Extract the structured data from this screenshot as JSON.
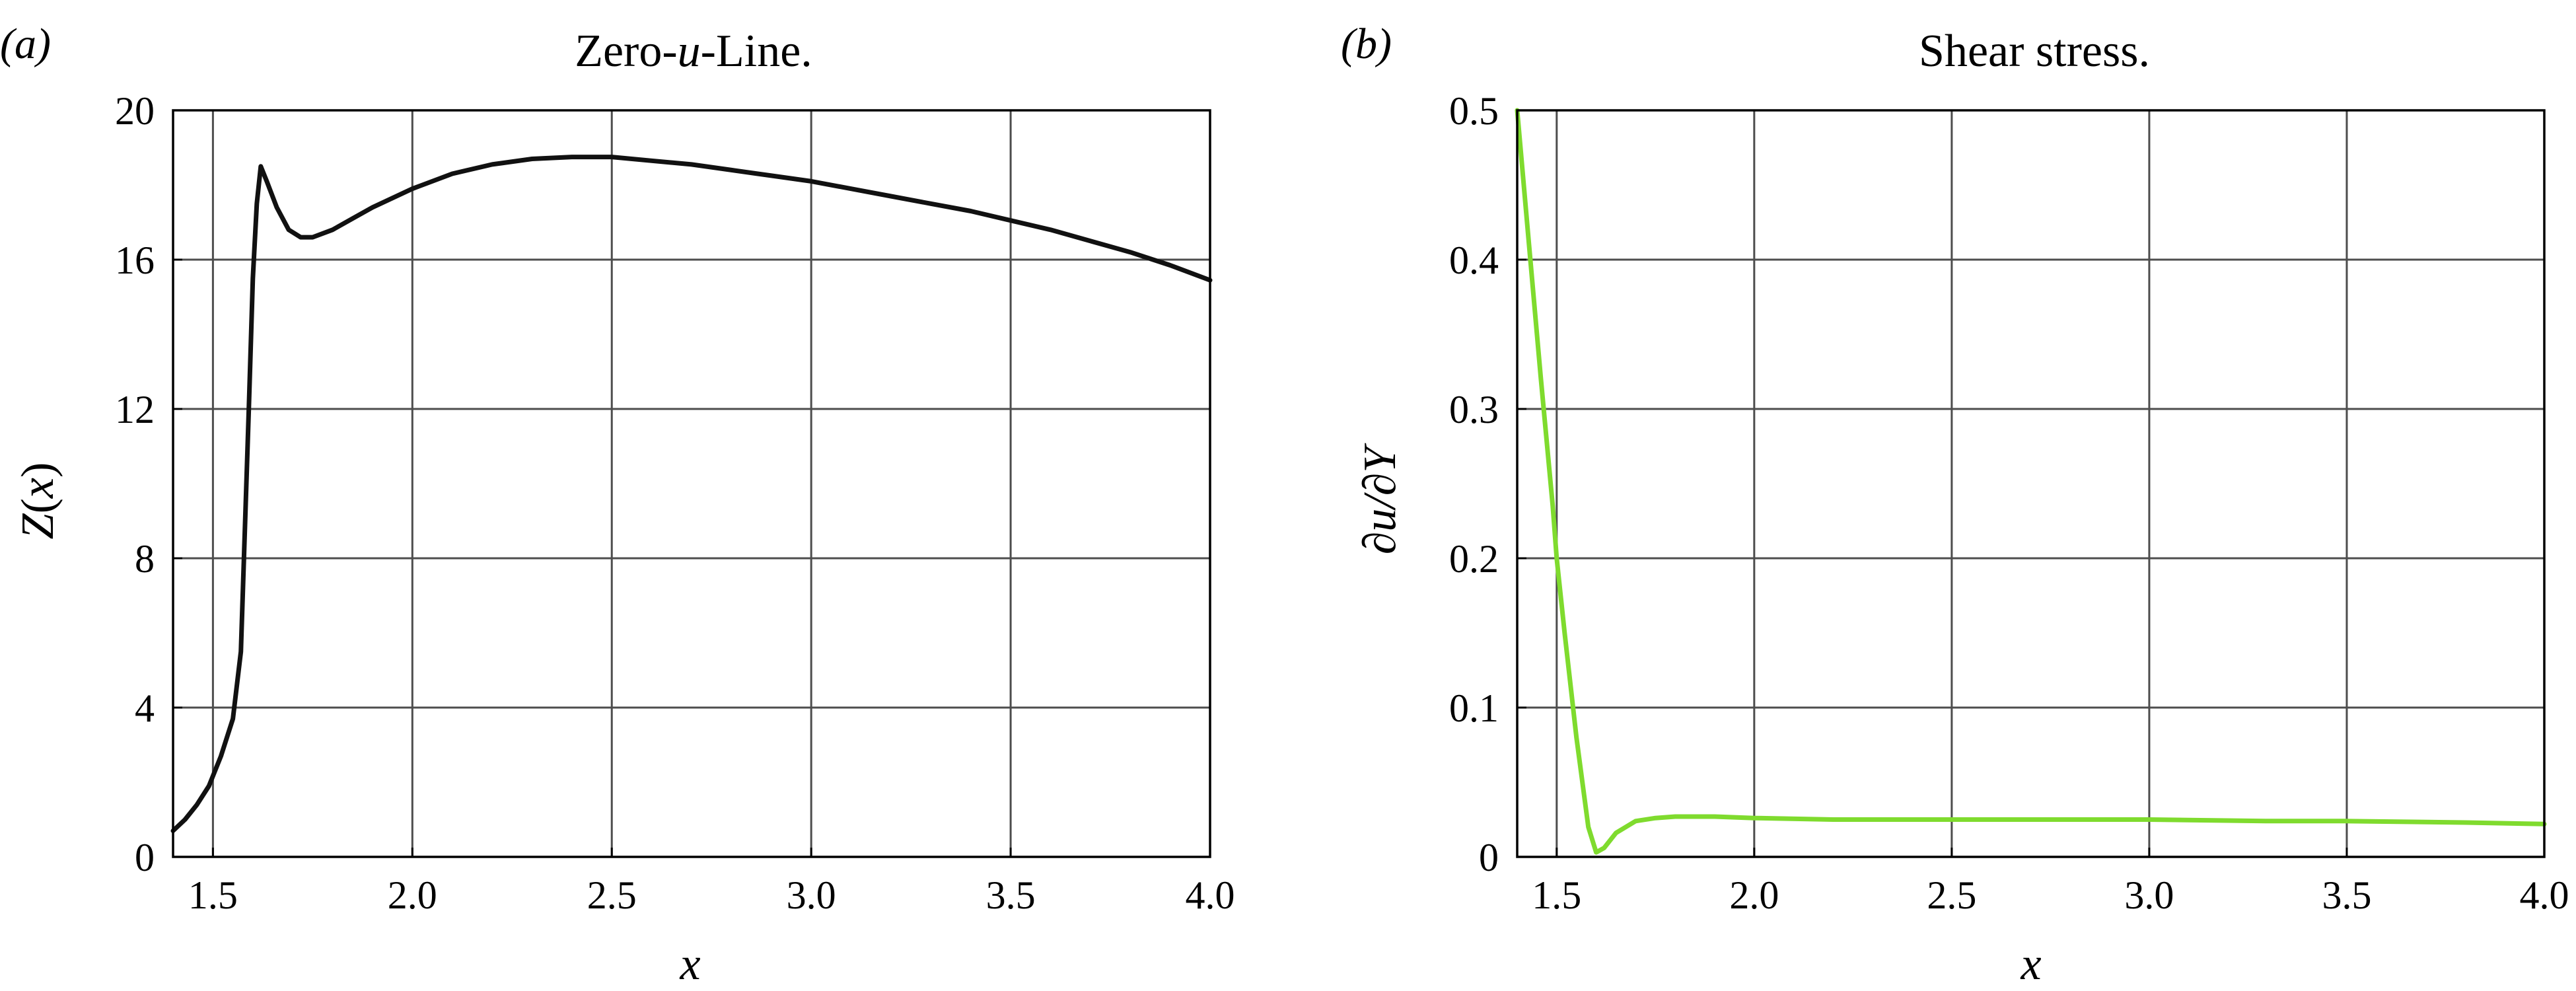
{
  "chart_data": [
    {
      "type": "line",
      "panel_label": "(a)",
      "title": "Zero-u-Line.",
      "title_parts": [
        "Zero-",
        "u",
        "-Line."
      ],
      "xlabel": "x",
      "ylabel": "Z(x)",
      "xlim": [
        1.4,
        4.0
      ],
      "ylim": [
        0,
        20
      ],
      "xticks": [
        1.5,
        2.0,
        2.5,
        3.0,
        3.5,
        4.0
      ],
      "xtick_labels": [
        "1.5",
        "2.0",
        "2.5",
        "3.0",
        "3.5",
        "4.0"
      ],
      "yticks": [
        0,
        4,
        8,
        12,
        16,
        20
      ],
      "ytick_labels": [
        "0",
        "4",
        "8",
        "12",
        "16",
        "20"
      ],
      "grid": true,
      "series": [
        {
          "color": "#111111",
          "x": [
            1.4,
            1.43,
            1.46,
            1.49,
            1.52,
            1.55,
            1.57,
            1.59,
            1.6,
            1.61,
            1.62,
            1.635,
            1.66,
            1.69,
            1.72,
            1.75,
            1.8,
            1.85,
            1.9,
            2.0,
            2.1,
            2.2,
            2.3,
            2.4,
            2.5,
            2.6,
            2.7,
            2.8,
            2.9,
            3.0,
            3.1,
            3.2,
            3.3,
            3.4,
            3.5,
            3.6,
            3.7,
            3.8,
            3.9,
            4.0
          ],
          "y": [
            0.7,
            1.0,
            1.4,
            1.9,
            2.7,
            3.7,
            5.5,
            12.0,
            15.5,
            17.5,
            18.5,
            18.1,
            17.4,
            16.8,
            16.6,
            16.6,
            16.8,
            17.1,
            17.4,
            17.9,
            18.3,
            18.55,
            18.7,
            18.75,
            18.75,
            18.65,
            18.55,
            18.4,
            18.25,
            18.1,
            17.9,
            17.7,
            17.5,
            17.3,
            17.05,
            16.8,
            16.5,
            16.2,
            15.85,
            15.45
          ]
        }
      ]
    },
    {
      "type": "line",
      "panel_label": "(b)",
      "title": "Shear stress.",
      "xlabel": "x",
      "ylabel": "∂u/∂Y",
      "xlim": [
        1.4,
        4.0
      ],
      "ylim": [
        0,
        0.5
      ],
      "xticks": [
        1.5,
        2.0,
        2.5,
        3.0,
        3.5,
        4.0
      ],
      "xtick_labels": [
        "1.5",
        "2.0",
        "2.5",
        "3.0",
        "3.5",
        "4.0"
      ],
      "yticks": [
        0,
        0.1,
        0.2,
        0.3,
        0.4,
        0.5
      ],
      "ytick_labels": [
        "0",
        "0.1",
        "0.2",
        "0.3",
        "0.4",
        "0.5"
      ],
      "grid": true,
      "series": [
        {
          "color": "#7fdb2e",
          "x": [
            1.4,
            1.43,
            1.46,
            1.49,
            1.5,
            1.52,
            1.55,
            1.58,
            1.6,
            1.62,
            1.65,
            1.7,
            1.75,
            1.8,
            1.9,
            2.0,
            2.2,
            2.5,
            2.8,
            3.0,
            3.3,
            3.5,
            3.8,
            4.0
          ],
          "y": [
            0.5,
            0.41,
            0.32,
            0.235,
            0.2,
            0.15,
            0.08,
            0.02,
            0.003,
            0.006,
            0.016,
            0.024,
            0.026,
            0.027,
            0.027,
            0.026,
            0.025,
            0.025,
            0.025,
            0.025,
            0.024,
            0.024,
            0.023,
            0.022
          ]
        }
      ]
    }
  ]
}
